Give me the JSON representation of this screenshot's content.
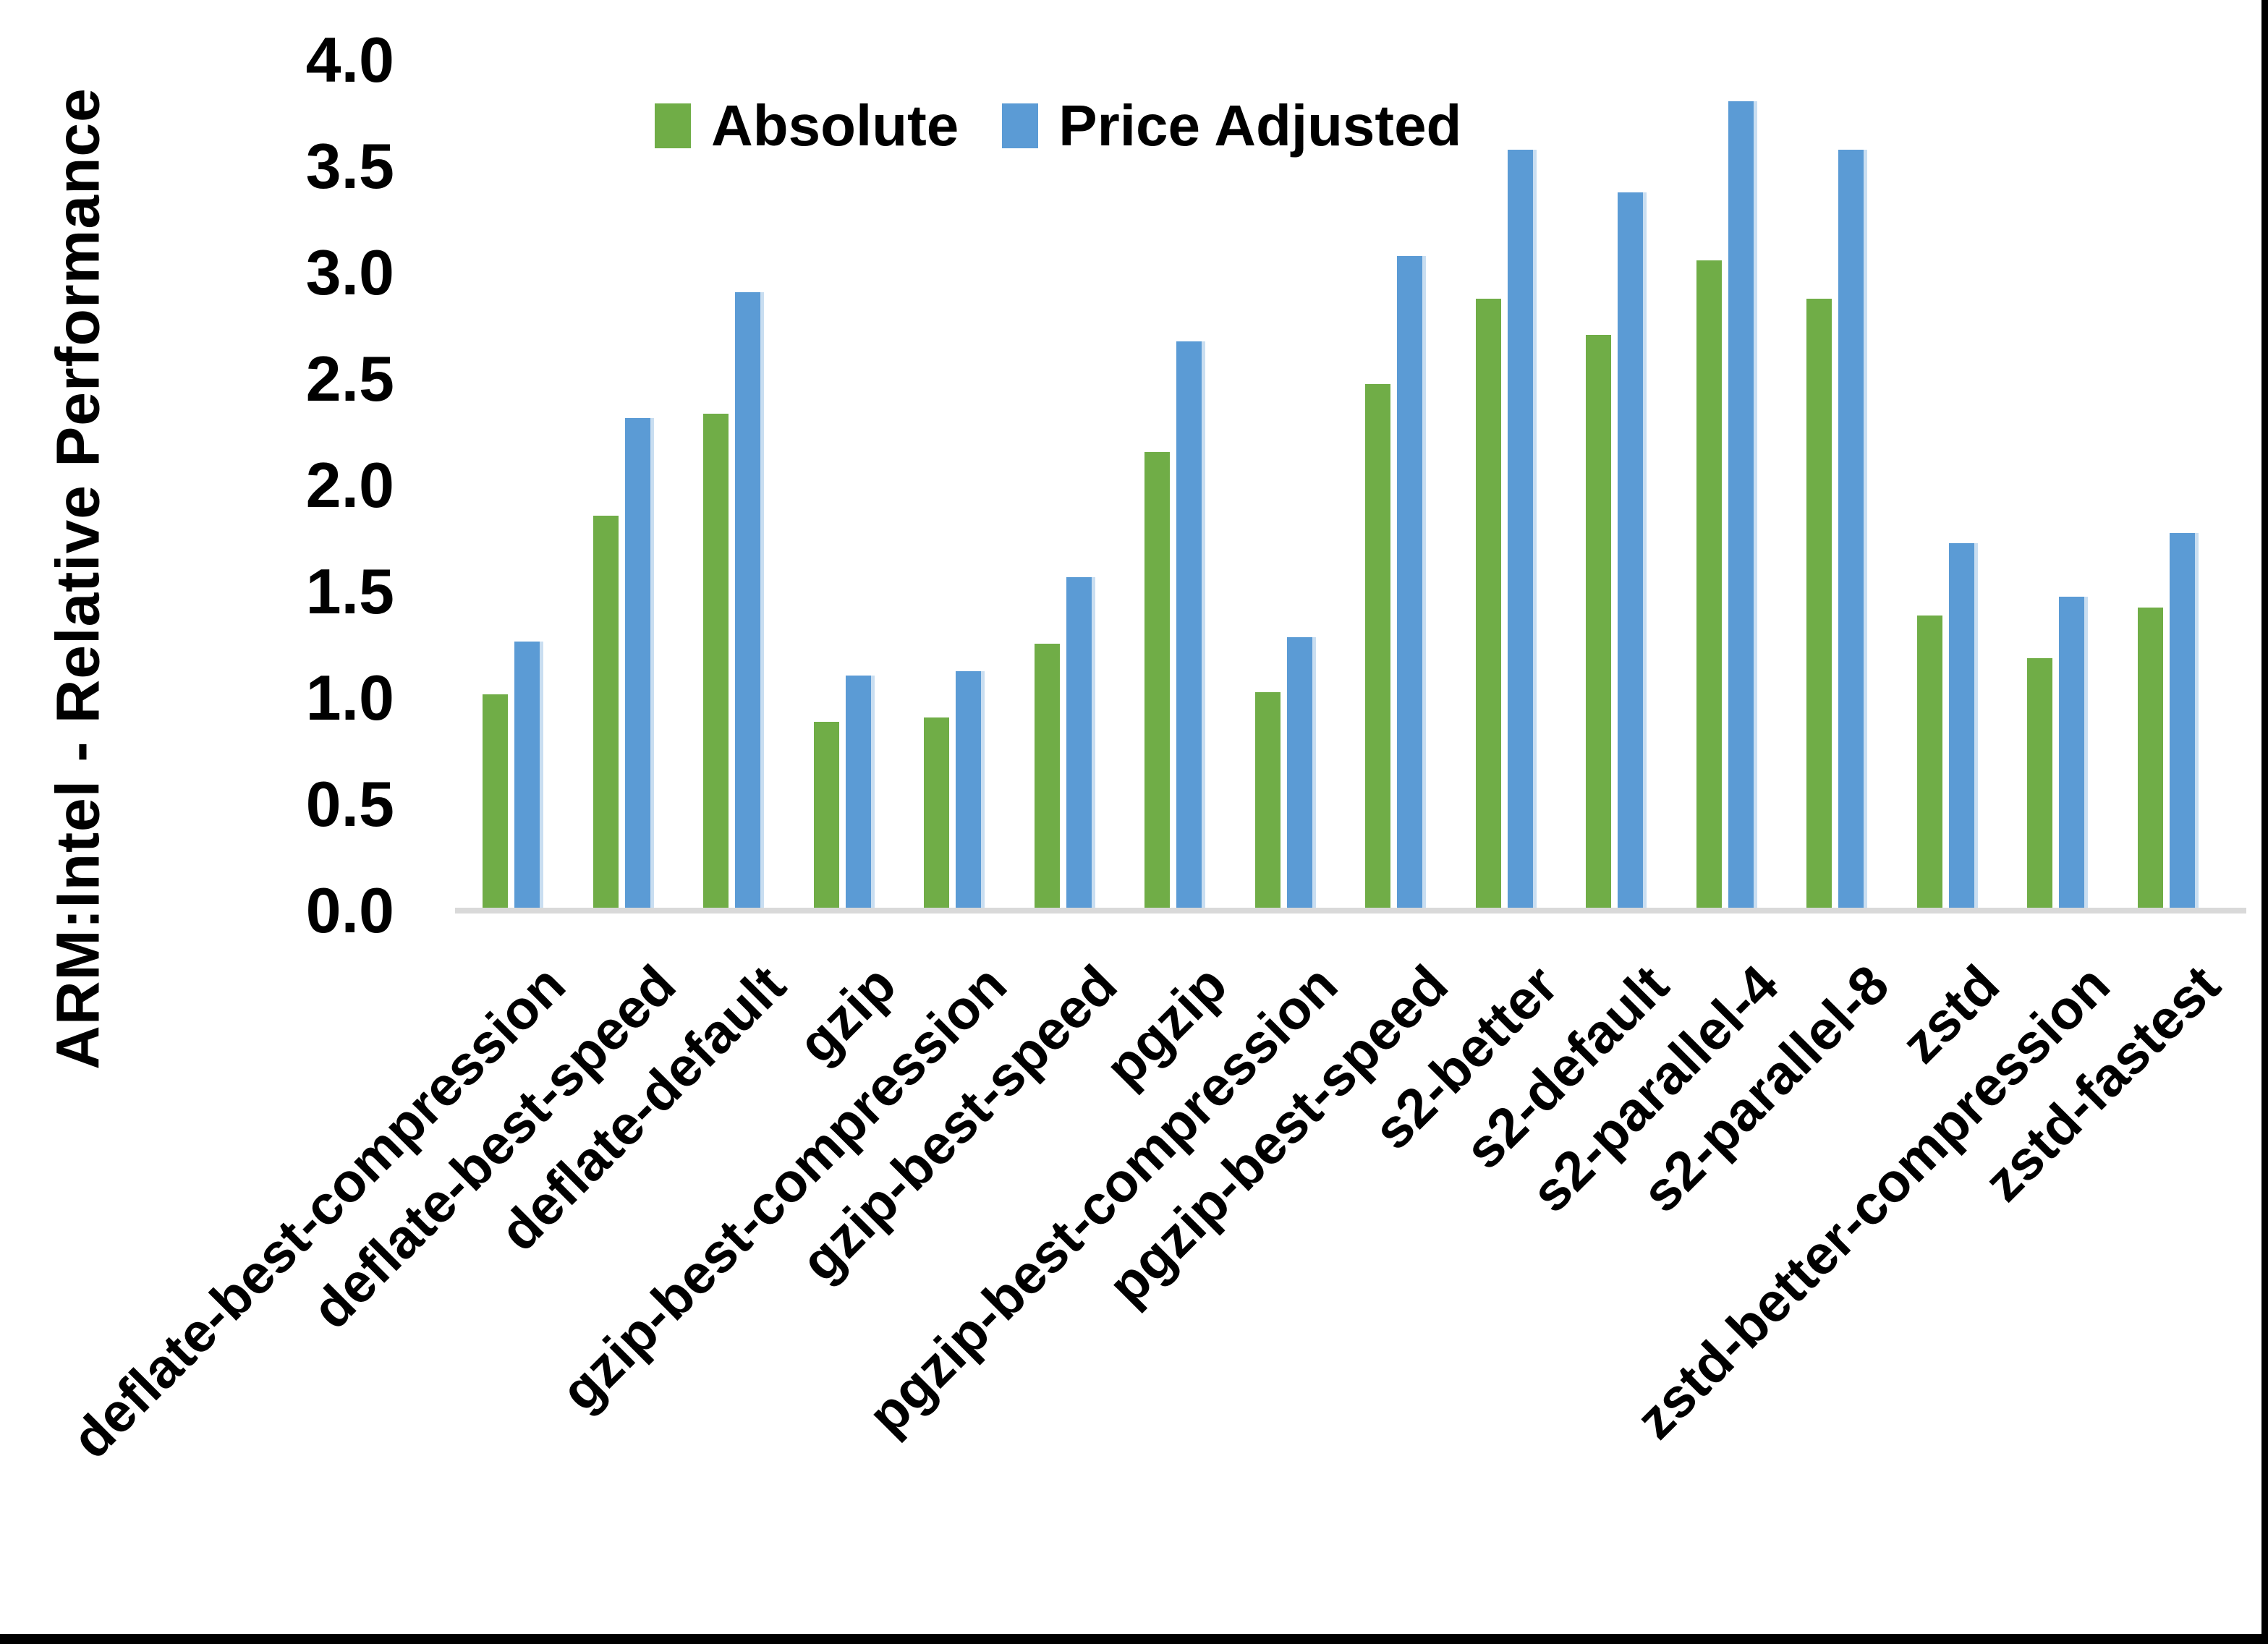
{
  "chart_data": {
    "type": "bar",
    "title": "",
    "ylabel": "ARM:Intel - Relative Performance",
    "xlabel": "",
    "ylim": [
      0.0,
      4.0
    ],
    "ytick_step": 0.5,
    "ytick_labels": [
      "0.0",
      "0.5",
      "1.0",
      "1.5",
      "2.0",
      "2.5",
      "3.0",
      "3.5",
      "4.0"
    ],
    "grid": false,
    "legend_position": "top-center",
    "axis_line_color": "#d9d9d9",
    "categories": [
      "deflate-best-compression",
      "deflate-best-speed",
      "deflate-default",
      "gzip",
      "gzip-best-compression",
      "gzip-best-speed",
      "pgzip",
      "pgzip-best-compression",
      "pgzip-best-speed",
      "s2-better",
      "s2-default",
      "s2-parallel-4",
      "s2-parallel-8",
      "zstd",
      "zstd-better-compression",
      "zstd-fastest"
    ],
    "series": [
      {
        "name": "Absolute",
        "color": "#70ad47",
        "values": [
          1.01,
          1.85,
          2.33,
          0.88,
          0.9,
          1.25,
          2.15,
          1.02,
          2.47,
          2.87,
          2.7,
          3.05,
          2.87,
          1.38,
          1.18,
          1.42
        ]
      },
      {
        "name": "Price Adjusted",
        "color": "#5b9bd5",
        "edge_highlight_color": "#c9def1",
        "values": [
          1.26,
          2.31,
          2.9,
          1.1,
          1.12,
          1.56,
          2.67,
          1.28,
          3.07,
          3.57,
          3.37,
          3.8,
          3.57,
          1.72,
          1.47,
          1.77
        ]
      }
    ]
  },
  "frame": {
    "right_border_color": "#000000",
    "bottom_border_color": "#000000"
  }
}
